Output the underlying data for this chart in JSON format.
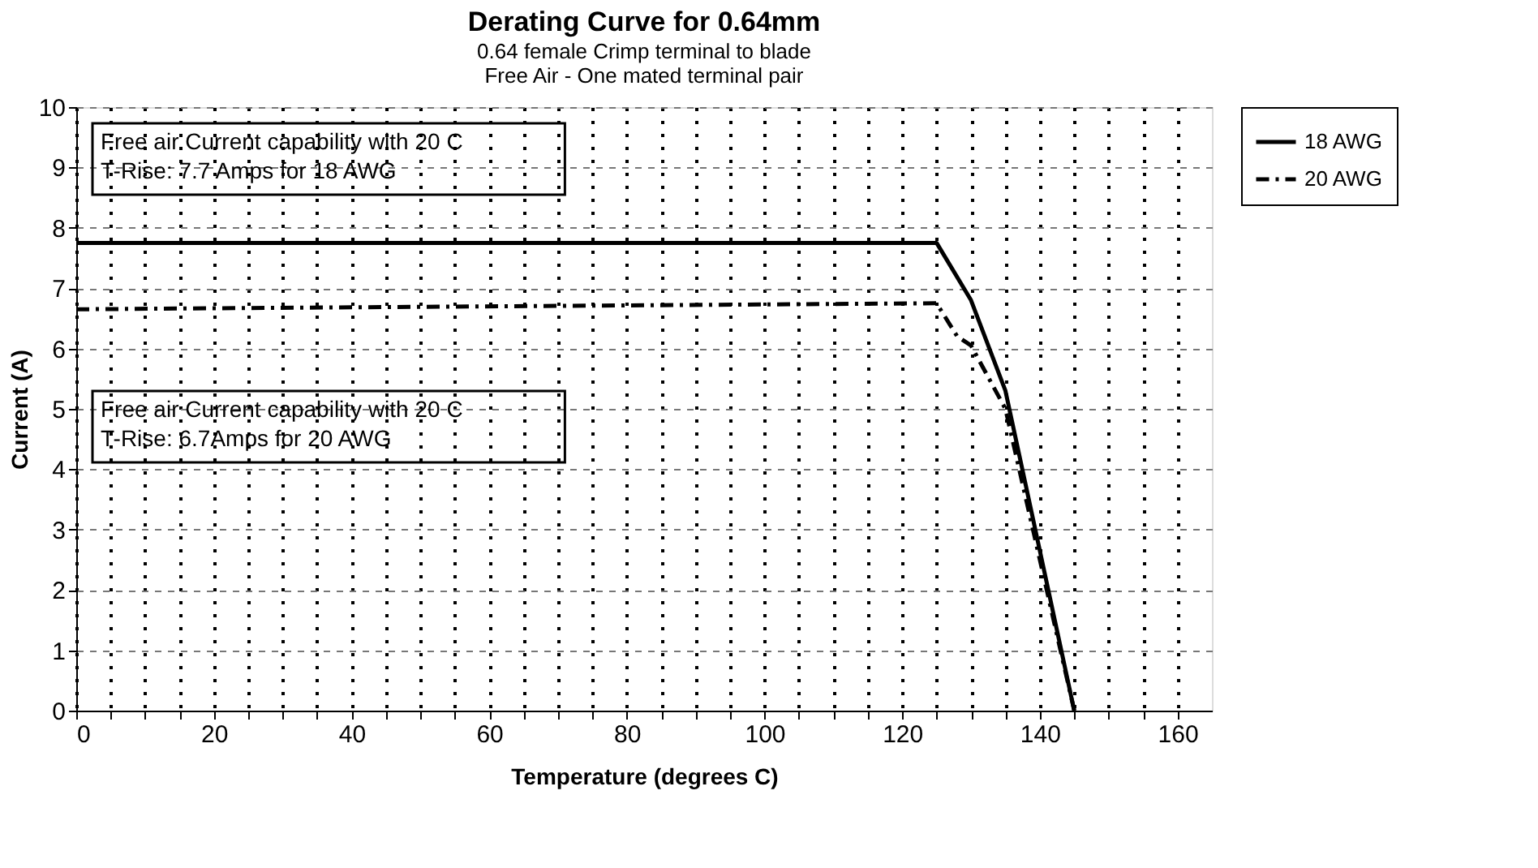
{
  "chart_data": {
    "type": "line",
    "title": "Derating Curve for 0.64mm",
    "subtitle": [
      "0.64 female Crimp  terminal to blade",
      "Free Air - One mated terminal pair"
    ],
    "xlabel": "Temperature (degrees C)",
    "ylabel": "Current (A)",
    "series": [
      {
        "name": "18 AWG",
        "color": "#000000",
        "line_style": "solid",
        "x": [
          0,
          125,
          130,
          135,
          145
        ],
        "values": [
          7.75,
          7.75,
          6.8,
          5.3,
          0
        ]
      },
      {
        "name": "20 AWG",
        "color": "#000000",
        "line_style": "dashed",
        "x": [
          0,
          125,
          128,
          130,
          135,
          145
        ],
        "values": [
          6.65,
          6.75,
          6.2,
          6.05,
          5.0,
          0
        ]
      }
    ],
    "xlim": [
      0,
      165
    ],
    "xticks": [
      0,
      {
        "value": 5,
        "label": null
      },
      {
        "value": 10,
        "label": null
      },
      {
        "value": 15,
        "label": null
      },
      20,
      {
        "value": 25,
        "label": null
      },
      {
        "value": 30,
        "label": null
      },
      {
        "value": 35,
        "label": null
      },
      40,
      {
        "value": 45,
        "label": null
      },
      {
        "value": 50,
        "label": null
      },
      {
        "value": 55,
        "label": null
      },
      60,
      {
        "value": 65,
        "label": null
      },
      {
        "value": 70,
        "label": null
      },
      {
        "value": 75,
        "label": null
      },
      80,
      {
        "value": 85,
        "label": null
      },
      {
        "value": 90,
        "label": null
      },
      {
        "value": 95,
        "label": null
      },
      100,
      {
        "value": 105,
        "label": null
      },
      {
        "value": 110,
        "label": null
      },
      {
        "value": 115,
        "label": null
      },
      120,
      {
        "value": 125,
        "label": null
      },
      {
        "value": 130,
        "label": null
      },
      {
        "value": 135,
        "label": null
      },
      140,
      {
        "value": 145,
        "label": null
      },
      {
        "value": 150,
        "label": null
      },
      {
        "value": 155,
        "label": null
      },
      160
    ],
    "ylim": [
      0,
      10
    ],
    "yticks": [
      0,
      1,
      2,
      3,
      4,
      5,
      6,
      7,
      8,
      9,
      10
    ],
    "grid": true,
    "legend": "right",
    "marker": "none",
    "annotations": [
      "Free air Current capability with 20 C\nT-Rise:  7.7 Amps for 18 AWG",
      "Free air Current capability with 20 C\nT-Rise:  6.7Amps for 20 AWG"
    ]
  }
}
